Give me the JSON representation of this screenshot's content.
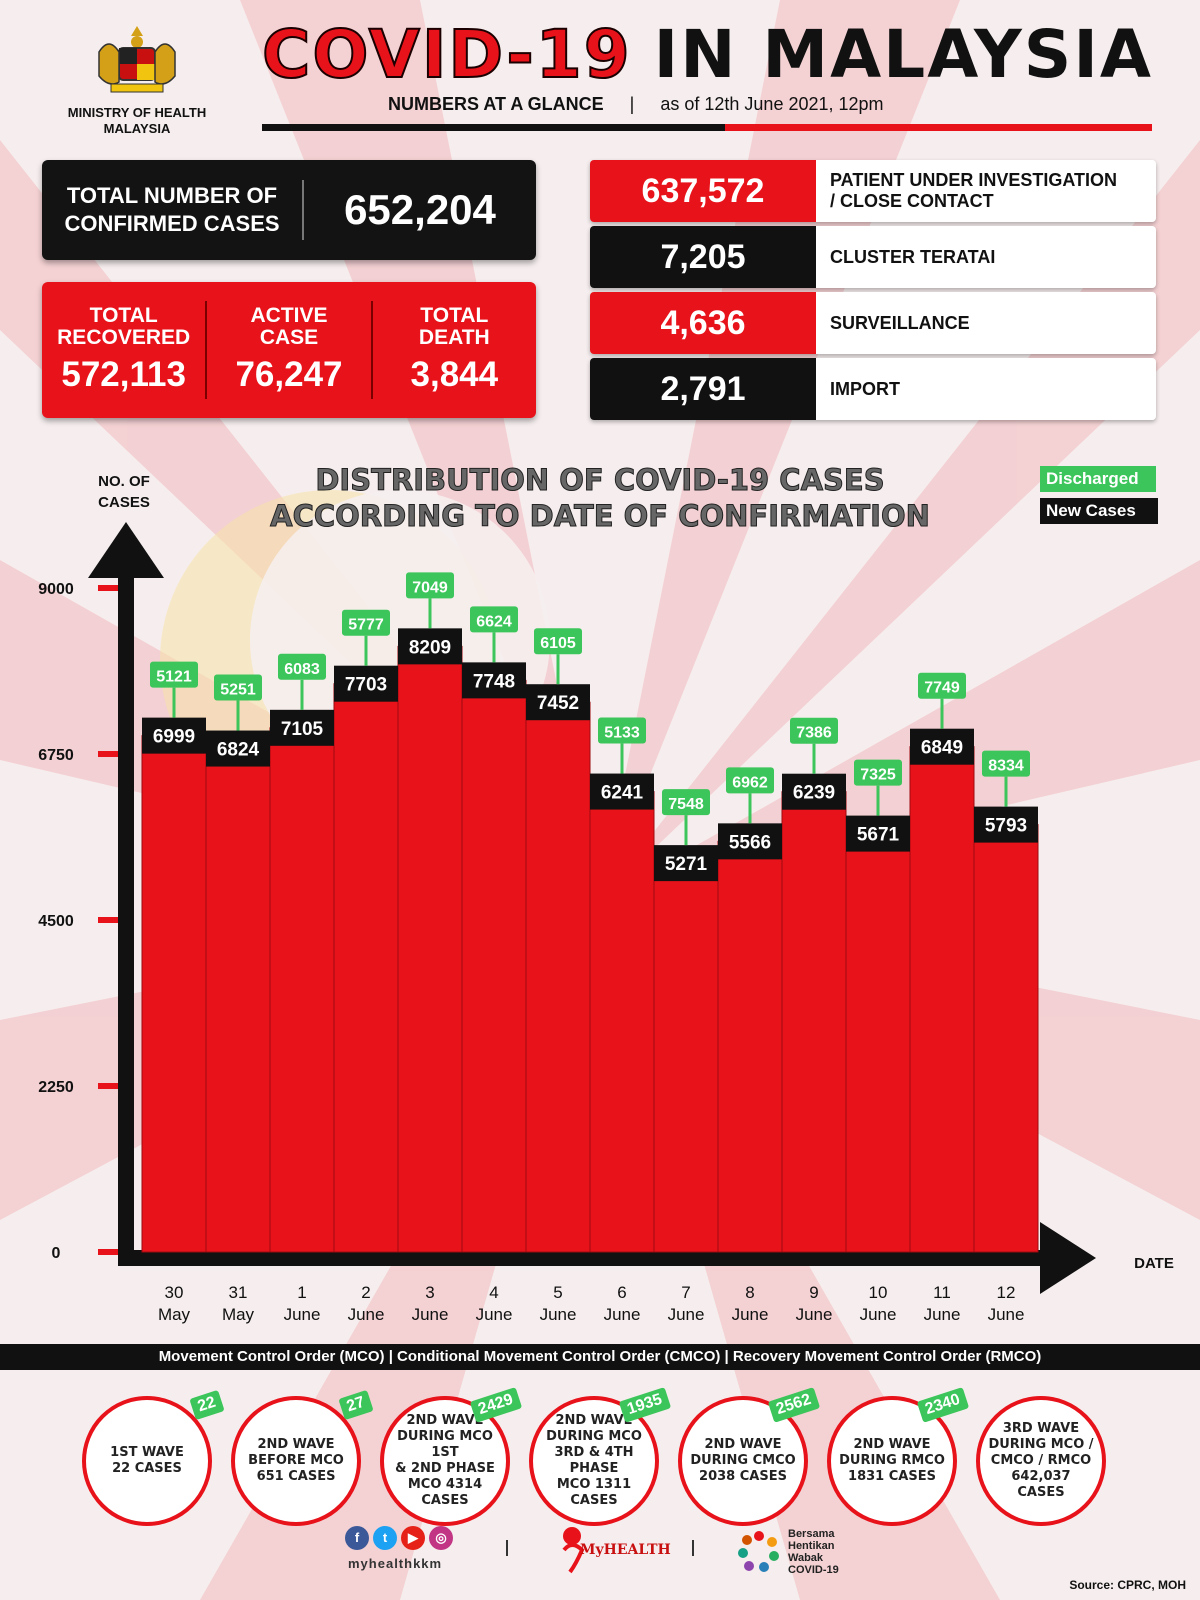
{
  "header": {
    "ministry_line1": "MINISTRY OF HEALTH",
    "ministry_line2": "MALAYSIA",
    "title_red": "COVID-19",
    "title_black": "IN MALAYSIA",
    "subtitle_bold": "NUMBERS AT A GLANCE",
    "subtitle_sep": "|",
    "subtitle_date": "as of 12th June 2021, 12pm"
  },
  "confirmed": {
    "label_line1": "TOTAL NUMBER OF",
    "label_line2": "CONFIRMED CASES",
    "value": "652,204"
  },
  "summary": [
    {
      "label_line1": "TOTAL",
      "label_line2": "RECOVERED",
      "value": "572,113"
    },
    {
      "label_line1": "ACTIVE",
      "label_line2": "CASE",
      "value": "76,247"
    },
    {
      "label_line1": "TOTAL",
      "label_line2": "DEATH",
      "value": "3,844"
    }
  ],
  "categories": [
    {
      "value": "637,572",
      "label_line1": "PATIENT UNDER INVESTIGATION",
      "label_line2": "/ CLOSE CONTACT",
      "color": "#e8121a"
    },
    {
      "value": "7,205",
      "label_line1": "CLUSTER TERATAI",
      "label_line2": "",
      "color": "#111111"
    },
    {
      "value": "4,636",
      "label_line1": "SURVEILLANCE",
      "label_line2": "",
      "color": "#e8121a"
    },
    {
      "value": "2,791",
      "label_line1": "IMPORT",
      "label_line2": "",
      "color": "#111111"
    }
  ],
  "chart_title_line1": "DISTRIBUTION OF COVID-19 CASES",
  "chart_title_line2": "ACCORDING TO DATE OF CONFIRMATION",
  "legend": {
    "discharged": "Discharged",
    "new_cases": "New Cases"
  },
  "chart_data": {
    "type": "bar",
    "ylabel_line1": "NO. OF",
    "ylabel_line2": "CASES",
    "xlabel": "DATE",
    "ylim": [
      0,
      9000
    ],
    "yticks": [
      "0",
      "2250",
      "4500",
      "6750",
      "9000"
    ],
    "categories": [
      [
        "30",
        "May"
      ],
      [
        "31",
        "May"
      ],
      [
        "1",
        "June"
      ],
      [
        "2",
        "June"
      ],
      [
        "3",
        "June"
      ],
      [
        "4",
        "June"
      ],
      [
        "5",
        "June"
      ],
      [
        "6",
        "June"
      ],
      [
        "7",
        "June"
      ],
      [
        "8",
        "June"
      ],
      [
        "9",
        "June"
      ],
      [
        "10",
        "June"
      ],
      [
        "11",
        "June"
      ],
      [
        "12",
        "June"
      ]
    ],
    "series": [
      {
        "name": "New Cases",
        "values": [
          6999,
          6824,
          7105,
          7703,
          8209,
          7748,
          7452,
          6241,
          5271,
          5566,
          6239,
          5671,
          6849,
          5793
        ]
      },
      {
        "name": "Discharged",
        "values": [
          5121,
          5251,
          6083,
          5777,
          7049,
          6624,
          6105,
          5133,
          7548,
          6962,
          7386,
          7325,
          7749,
          8334
        ]
      }
    ],
    "colors": {
      "bar": "#e8121a",
      "new_cases_label": "#111111",
      "discharged_label": "#3cc55a"
    }
  },
  "strip_text": "Movement Control Order (MCO) | Conditional Movement Control Order (CMCO) | Recovery Movement Control Order (RMCO)",
  "waves": [
    {
      "badge": "22",
      "lines": [
        "1ST WAVE",
        "22 CASES"
      ]
    },
    {
      "badge": "27",
      "lines": [
        "2ND WAVE",
        "BEFORE MCO",
        "651 CASES"
      ]
    },
    {
      "badge": "2429",
      "lines": [
        "2ND WAVE",
        "DURING MCO 1ST",
        "& 2ND PHASE",
        "MCO 4314",
        "CASES"
      ]
    },
    {
      "badge": "1935",
      "lines": [
        "2ND WAVE",
        "DURING MCO",
        "3RD & 4TH PHASE",
        "MCO 1311",
        "CASES"
      ]
    },
    {
      "badge": "2562",
      "lines": [
        "2ND WAVE",
        "DURING CMCO",
        "2038 CASES"
      ]
    },
    {
      "badge": "2340",
      "lines": [
        "2ND WAVE",
        "DURING RMCO",
        "1831 CASES"
      ]
    },
    {
      "badge": "",
      "lines": [
        "3RD WAVE",
        "DURING MCO /",
        "CMCO / RMCO",
        "642,037",
        "CASES"
      ]
    }
  ],
  "footer": {
    "handle": "myhealthkkm",
    "myhealth": "MyHEALTH",
    "bersama_lines": [
      "Bersama",
      "Hentikan",
      "Wabak",
      "COVID-19"
    ],
    "source": "Source: CPRC, MOH"
  }
}
